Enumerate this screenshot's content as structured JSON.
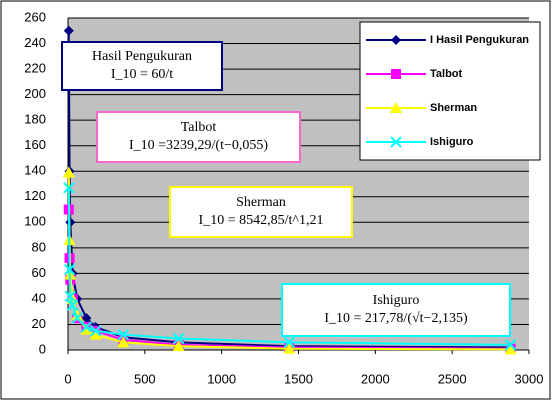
{
  "chart_data": {
    "type": "line",
    "x": [
      5,
      10,
      15,
      30,
      60,
      120,
      180,
      360,
      720,
      1440,
      2880
    ],
    "series": [
      {
        "name": "I Hasil Pengukuran",
        "color": "#000080",
        "marker": "diamond",
        "values": [
          250,
          140,
          100,
          60,
          40,
          25,
          18,
          10,
          6,
          3,
          2
        ]
      },
      {
        "name": "Talbot",
        "color": "#ff00ff",
        "marker": "square",
        "values": [
          110,
          72,
          55,
          40,
          25,
          18,
          15,
          8,
          4,
          2,
          1
        ]
      },
      {
        "name": "Sherman",
        "color": "#ffff00",
        "marker": "triangle",
        "values": [
          139,
          86,
          59,
          40,
          27,
          16,
          12,
          6,
          3,
          1,
          0.5
        ]
      },
      {
        "name": "Ishiguro",
        "color": "#00ffff",
        "marker": "x",
        "values": [
          127,
          63,
          42,
          35,
          25,
          18,
          15,
          12,
          9,
          6,
          4
        ]
      }
    ],
    "xlim": [
      0,
      3000
    ],
    "xticks": [
      0,
      500,
      1000,
      1500,
      2000,
      2500,
      3000
    ],
    "ylim": [
      0,
      260
    ],
    "yticks": [
      0,
      20,
      40,
      60,
      80,
      100,
      120,
      140,
      160,
      180,
      200,
      220,
      240,
      260
    ],
    "grid": true,
    "legend": "top-right",
    "annotations": [
      {
        "lines": [
          "Hasil Pengukuran",
          "I_10 =  60/t"
        ],
        "color": "#000080"
      },
      {
        "lines": [
          "Talbot",
          "I_10 =3239,29/(t−0,055)"
        ],
        "color": "#ff66cc"
      },
      {
        "lines": [
          "Sherman",
          "I_10 = 8542,85/t^1,21"
        ],
        "color": "#ffff00"
      },
      {
        "lines": [
          "Ishiguro",
          "I_10 = 217,78/(√t−2,135)"
        ],
        "color": "#00ffff"
      }
    ]
  }
}
